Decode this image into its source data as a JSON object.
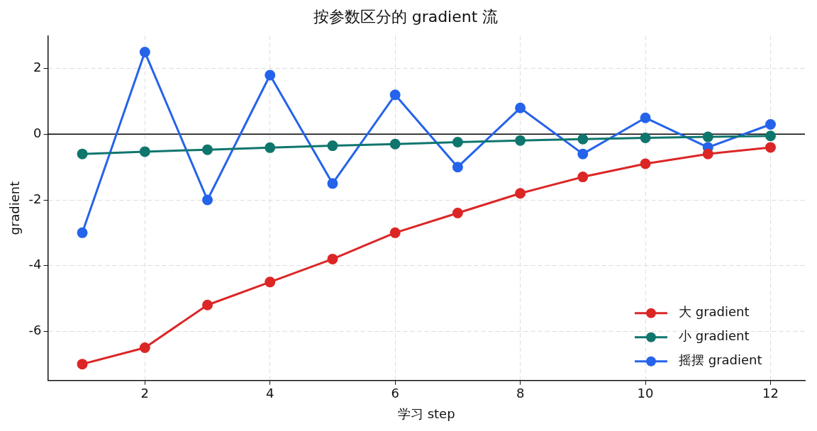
{
  "chart_data": {
    "type": "line",
    "title": "按参数区分的 gradient 流",
    "xlabel": "学习 step",
    "ylabel": "gradient",
    "x": [
      1,
      2,
      3,
      4,
      5,
      6,
      7,
      8,
      9,
      10,
      11,
      12
    ],
    "series": [
      {
        "name": "大 gradient",
        "color": "#dc2626",
        "values": [
          -7,
          -6.5,
          -5.2,
          -4.5,
          -3.8,
          -3.0,
          -2.4,
          -1.8,
          -1.3,
          -0.9,
          -0.6,
          -0.4
        ]
      },
      {
        "name": "小 gradient",
        "color": "#0f766e",
        "values": [
          -0.6,
          -0.53,
          -0.47,
          -0.41,
          -0.35,
          -0.3,
          -0.24,
          -0.19,
          -0.15,
          -0.11,
          -0.08,
          -0.05
        ]
      },
      {
        "name": "摇摆 gradient",
        "color": "#2563eb",
        "values": [
          -3,
          2.5,
          -2,
          1.8,
          -1.5,
          1.2,
          -1,
          0.8,
          -0.6,
          0.5,
          -0.4,
          0.3
        ]
      }
    ],
    "xlim": [
      0.45,
      12.55
    ],
    "xticks": [
      2,
      4,
      6,
      8,
      10,
      12
    ],
    "ylim": [
      -7.5,
      3
    ],
    "yticks": [
      -6,
      -4,
      -2,
      0,
      2
    ],
    "ref_lines": [
      {
        "axis": "y",
        "value": 0,
        "color": "#000000"
      }
    ],
    "grid": true,
    "legend": "bottom right",
    "marker": "circle",
    "line_style": "solid"
  }
}
